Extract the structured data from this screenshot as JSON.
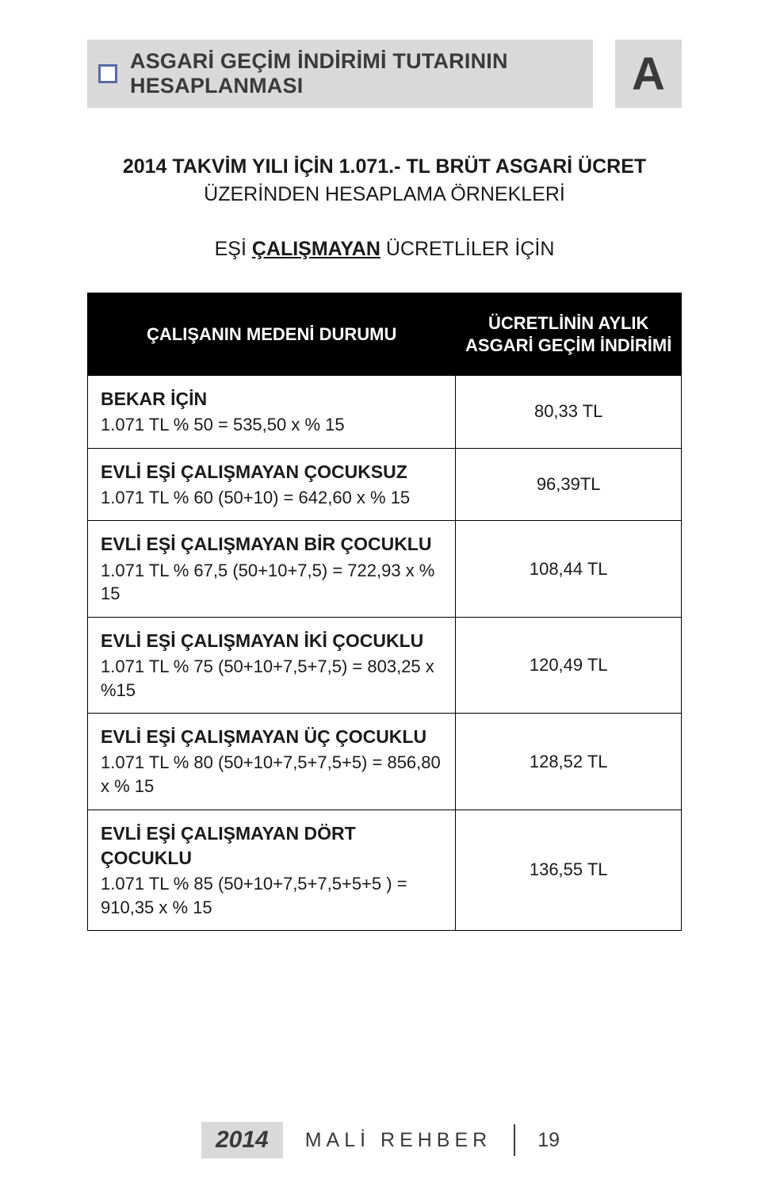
{
  "header": {
    "title": "ASGARİ GEÇİM İNDİRİMİ TUTARININ HESAPLANMASI",
    "letter": "A",
    "bullet_border_color": "#5a6aa8",
    "title_bg": "#d9d9d9"
  },
  "intro": {
    "line1_prefix": "2014 TAKVİM YILI İÇİN  1.071.- TL",
    "line1_rest": " BRÜT ASGARİ ÜCRET",
    "line2": "ÜZERİNDEN HESAPLAMA ÖRNEKLERİ",
    "line3_prefix": "EŞİ ",
    "line3_bold": "ÇALIŞMAYAN",
    "line3_rest": " ÜCRETLİLER İÇİN"
  },
  "table": {
    "header_left": "ÇALIŞANIN MEDENİ DURUMU",
    "header_right_l1": "ÜCRETLİNİN AYLIK",
    "header_right_l2": "ASGARİ GEÇİM İNDİRİMİ",
    "rows": [
      {
        "title": "BEKAR İÇİN",
        "formula": "1.071 TL  % 50  = 535,50  x  % 15",
        "amount": "80,33 TL"
      },
      {
        "title": "EVLİ EŞİ ÇALIŞMAYAN ÇOCUKSUZ",
        "formula": "1.071 TL  % 60  (50+10) =  642,60  x % 15",
        "amount": "96,39TL"
      },
      {
        "title": "EVLİ EŞİ ÇALIŞMAYAN BİR ÇOCUKLU",
        "formula": "1.071 TL  % 67,5 (50+10+7,5) = 722,93  x  % 15",
        "amount": "108,44 TL"
      },
      {
        "title": "EVLİ EŞİ ÇALIŞMAYAN İKİ ÇOCUKLU",
        "formula": "1.071 TL % 75 (50+10+7,5+7,5) = 803,25  x %15",
        "amount": "120,49 TL"
      },
      {
        "title": "EVLİ EŞİ ÇALIŞMAYAN ÜÇ ÇOCUKLU",
        "formula": "1.071 TL % 80 (50+10+7,5+7,5+5) =  856,80  x % 15",
        "amount": "128,52 TL"
      },
      {
        "title": "EVLİ EŞİ ÇALIŞMAYAN DÖRT ÇOCUKLU",
        "formula": "1.071 TL % 85 (50+10+7,5+7,5+5+5 ) =  910,35  x % 15",
        "amount": "136,55 TL"
      }
    ]
  },
  "footer": {
    "year": "2014",
    "title": "MALİ REHBER",
    "page": "19"
  }
}
